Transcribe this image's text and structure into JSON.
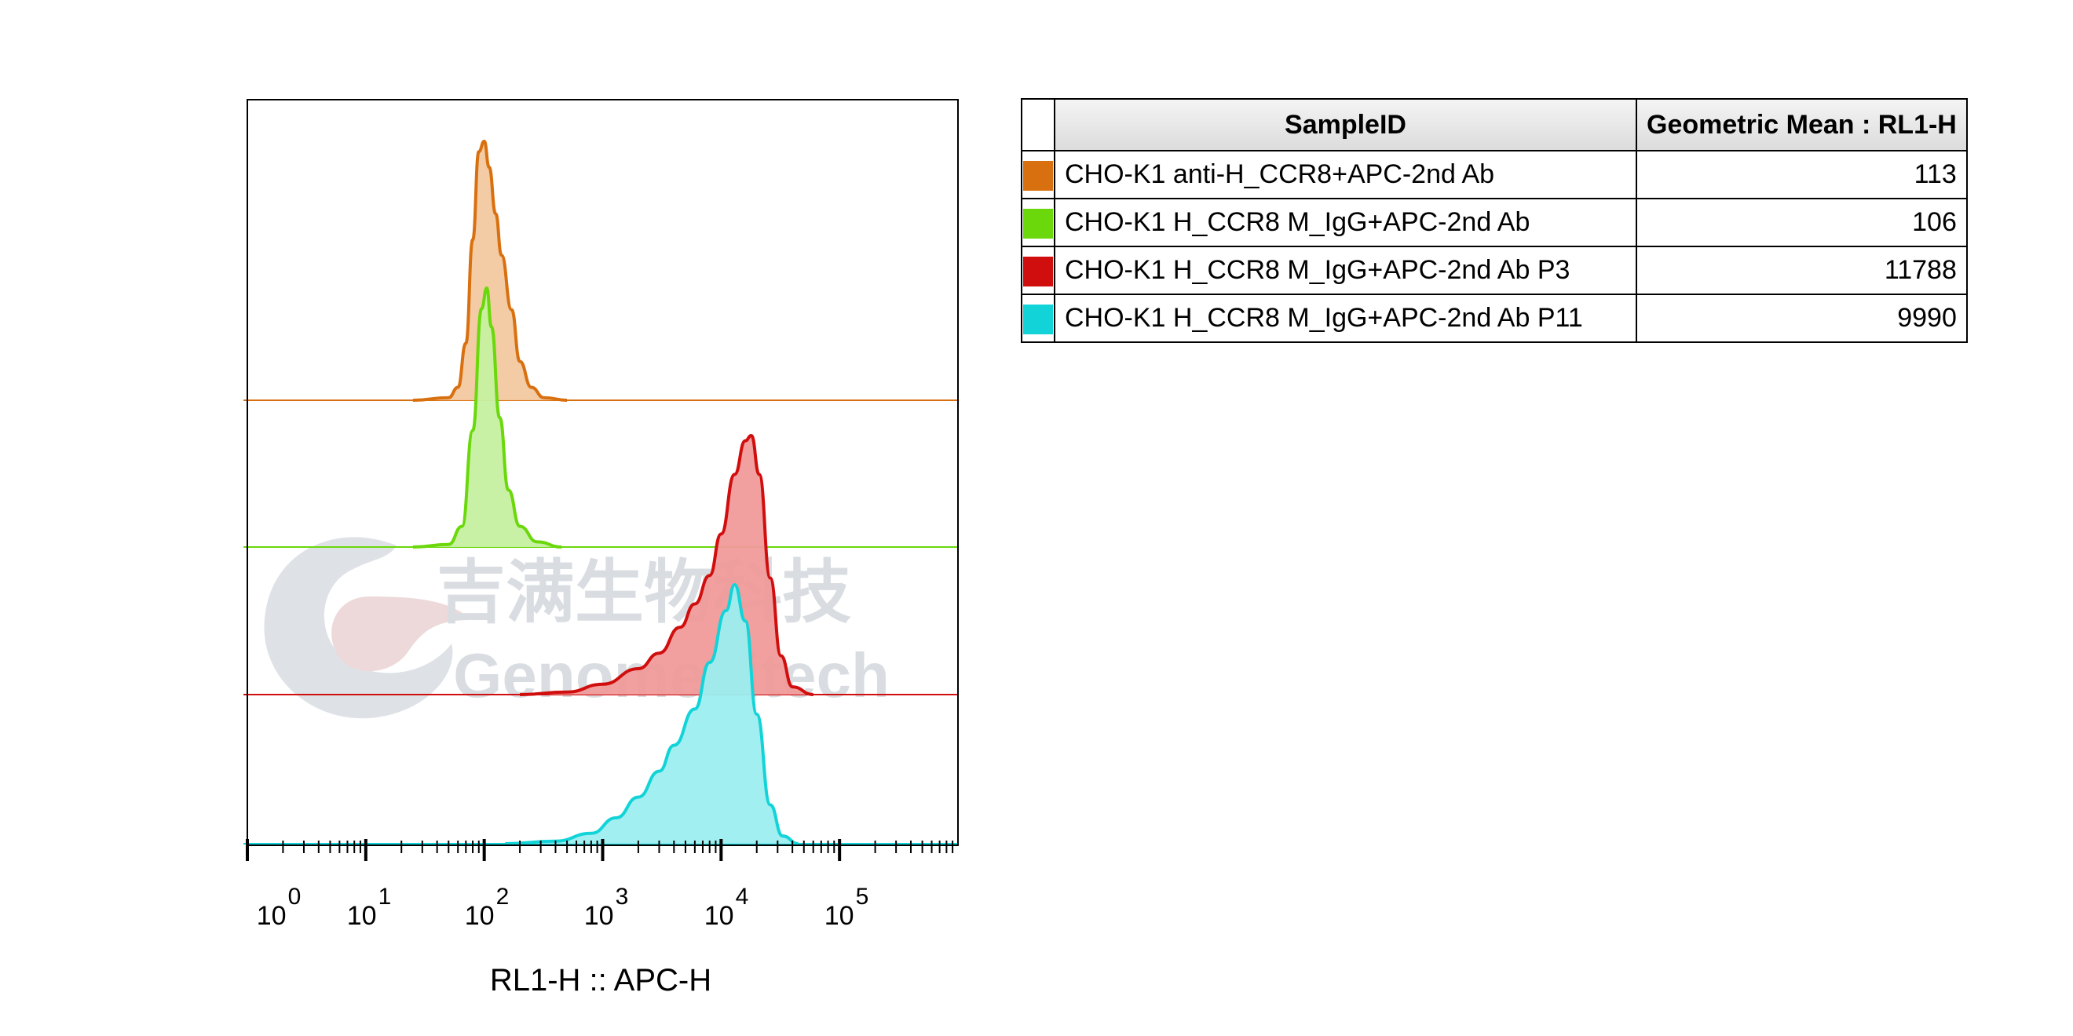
{
  "chart_data": {
    "type": "histogram",
    "xlabel": "RL1-H :: APC-H",
    "x_scale": "log",
    "xlim": [
      1,
      1000000
    ],
    "x_ticks": [
      {
        "value": 1,
        "base": "10",
        "exp": "0"
      },
      {
        "value": 10,
        "base": "10",
        "exp": "1"
      },
      {
        "value": 100,
        "base": "10",
        "exp": "2"
      },
      {
        "value": 1000,
        "base": "10",
        "exp": "3"
      },
      {
        "value": 10000,
        "base": "10",
        "exp": "4"
      },
      {
        "value": 100000,
        "base": "10",
        "exp": "5"
      }
    ],
    "series": [
      {
        "name": "CHO-K1 anti-H_CCR8+APC-2nd Ab",
        "color": "#D9700F",
        "fill": "#F2C8A0",
        "geometric_mean": 113,
        "points": [
          [
            25,
            0
          ],
          [
            50,
            0.01
          ],
          [
            60,
            0.05
          ],
          [
            70,
            0.22
          ],
          [
            80,
            0.62
          ],
          [
            90,
            0.96
          ],
          [
            100,
            1.0
          ],
          [
            110,
            0.9
          ],
          [
            125,
            0.72
          ],
          [
            140,
            0.56
          ],
          [
            170,
            0.35
          ],
          [
            200,
            0.15
          ],
          [
            250,
            0.05
          ],
          [
            320,
            0.01
          ],
          [
            500,
            0
          ]
        ]
      },
      {
        "name": "CHO-K1 H_CCR8 M_IgG+APC-2nd Ab",
        "color": "#6AD80A",
        "fill": "#C6F0A0",
        "geometric_mean": 106,
        "points": [
          [
            25,
            0
          ],
          [
            50,
            0.01
          ],
          [
            65,
            0.08
          ],
          [
            80,
            0.45
          ],
          [
            95,
            0.92
          ],
          [
            105,
            1.0
          ],
          [
            115,
            0.85
          ],
          [
            135,
            0.5
          ],
          [
            160,
            0.22
          ],
          [
            200,
            0.08
          ],
          [
            280,
            0.02
          ],
          [
            450,
            0
          ]
        ]
      },
      {
        "name": "CHO-K1 H_CCR8 M_IgG+APC-2nd Ab P3",
        "color": "#D10E0E",
        "fill": "#F09A9A",
        "geometric_mean": 11788,
        "points": [
          [
            200,
            0
          ],
          [
            500,
            0.01
          ],
          [
            1000,
            0.04
          ],
          [
            2000,
            0.1
          ],
          [
            3000,
            0.16
          ],
          [
            4500,
            0.26
          ],
          [
            6000,
            0.35
          ],
          [
            8000,
            0.46
          ],
          [
            10000,
            0.62
          ],
          [
            13000,
            0.85
          ],
          [
            16000,
            0.98
          ],
          [
            18000,
            1.0
          ],
          [
            21000,
            0.85
          ],
          [
            26000,
            0.45
          ],
          [
            32000,
            0.15
          ],
          [
            40000,
            0.03
          ],
          [
            60000,
            0
          ]
        ]
      },
      {
        "name": "CHO-K1 H_CCR8 M_IgG+APC-2nd Ab P11",
        "color": "#12D4D8",
        "fill": "#9CEEF0",
        "geometric_mean": 9990,
        "points": [
          [
            150,
            0
          ],
          [
            400,
            0.01
          ],
          [
            800,
            0.04
          ],
          [
            1300,
            0.1
          ],
          [
            2000,
            0.18
          ],
          [
            3000,
            0.28
          ],
          [
            4000,
            0.38
          ],
          [
            6000,
            0.52
          ],
          [
            8000,
            0.7
          ],
          [
            11000,
            0.9
          ],
          [
            13000,
            1.0
          ],
          [
            16000,
            0.86
          ],
          [
            20000,
            0.5
          ],
          [
            26000,
            0.15
          ],
          [
            33000,
            0.03
          ],
          [
            45000,
            0
          ]
        ]
      }
    ],
    "table": {
      "headers": [
        "SampleID",
        "Geometric Mean : RL1-H"
      ],
      "rows": [
        {
          "sample": "CHO-K1 anti-H_CCR8+APC-2nd Ab",
          "value": "113",
          "color": "#D9700F"
        },
        {
          "sample": "CHO-K1 H_CCR8 M_IgG+APC-2nd Ab",
          "value": "106",
          "color": "#6AD80A"
        },
        {
          "sample": "CHO-K1 H_CCR8 M_IgG+APC-2nd Ab P3",
          "value": "11788",
          "color": "#D10E0E"
        },
        {
          "sample": "CHO-K1 H_CCR8 M_IgG+APC-2nd Ab P11",
          "value": "9990",
          "color": "#12D4D8"
        }
      ]
    }
  },
  "watermark": {
    "line1": "吉满生物科技",
    "line2": "Genomeditech",
    "icon": "genomeditech-logo-icon"
  }
}
